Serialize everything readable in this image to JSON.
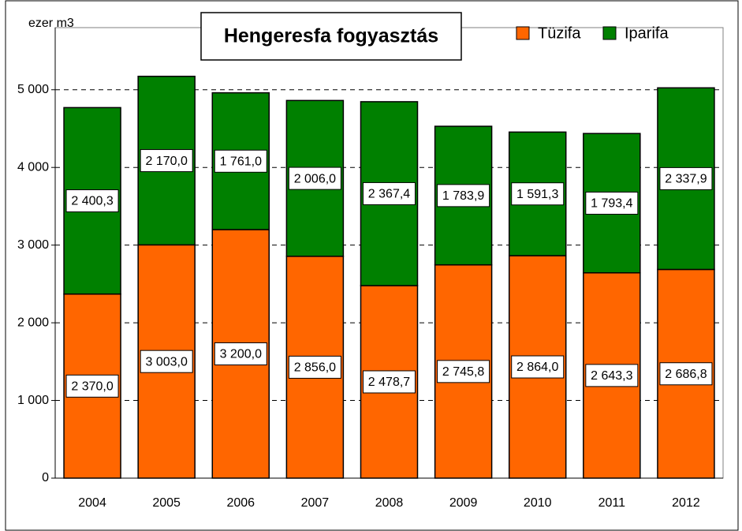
{
  "chart_data": {
    "type": "stacked_bar",
    "title": "Hengeresfa fogyasztás",
    "y_label": "ezer m3",
    "categories": [
      "2004",
      "2005",
      "2006",
      "2007",
      "2008",
      "2009",
      "2010",
      "2011",
      "2012"
    ],
    "series": [
      {
        "name": "Tüzifa",
        "color": "#ff6600",
        "values": [
          2370.0,
          3003.0,
          3200.0,
          2856.0,
          2478.7,
          2745.8,
          2864.0,
          2643.3,
          2686.8
        ],
        "value_labels": [
          "2 370,0",
          "3 003,0",
          "3 200,0",
          "2 856,0",
          "2 478,7",
          "2 745,8",
          "2 864,0",
          "2 643,3",
          "2 686,8"
        ]
      },
      {
        "name": "Iparifa",
        "color": "#008000",
        "values": [
          2400.3,
          2170.0,
          1761.0,
          2006.0,
          2367.4,
          1783.9,
          1591.3,
          1793.4,
          2337.9
        ],
        "value_labels": [
          "2 400,3",
          "2 170,0",
          "1 761,0",
          "2 006,0",
          "2 367,4",
          "1 783,9",
          "1 591,3",
          "1 793,4",
          "2 337,9"
        ]
      }
    ],
    "ylim": [
      0,
      5800
    ],
    "yticks": [
      0,
      {
        "value": 1000,
        "label": "1 000"
      },
      {
        "value": 2000,
        "label": "2 000"
      },
      {
        "value": 3000,
        "label": "3 000"
      },
      {
        "value": 4000,
        "label": "4 000"
      },
      {
        "value": 5000,
        "label": "5 000"
      }
    ],
    "grid": true,
    "legend": "top-right"
  }
}
